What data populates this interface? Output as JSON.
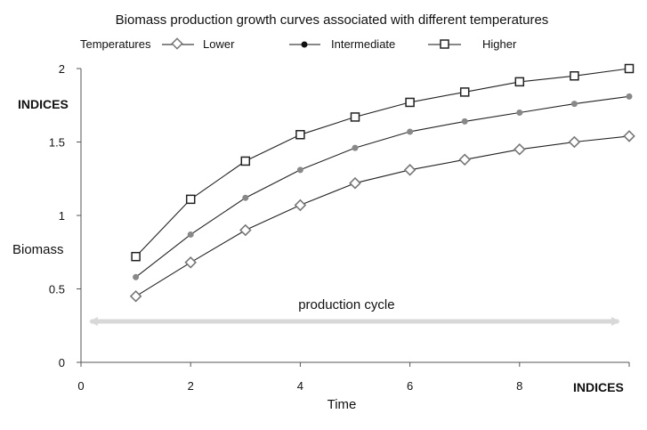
{
  "chart_data": {
    "type": "line",
    "title": "Biomass production growth curves associated with different temperatures",
    "xlabel": "Time",
    "ylabel": "Biomass",
    "xlim": [
      0,
      10
    ],
    "ylim": [
      0,
      2
    ],
    "x_ticks": [
      "0",
      "2",
      "4",
      "6",
      "8"
    ],
    "y_ticks": [
      "0",
      "0.5",
      "1",
      "1.5",
      "2"
    ],
    "x_index_label": "INDICES",
    "y_index_label": "INDICES",
    "legend_title": "Temperatures",
    "legend_position": "top",
    "grid": false,
    "annotation": {
      "text": "production cycle",
      "from_x": 0.5,
      "to_x": 10,
      "y": 0.23
    },
    "x": [
      1,
      2,
      3,
      4,
      5,
      6,
      7,
      8,
      9,
      10
    ],
    "series": [
      {
        "name": "Lower",
        "marker": "diamond-open",
        "color": "#777777",
        "values": [
          0.45,
          0.68,
          0.9,
          1.07,
          1.22,
          1.31,
          1.38,
          1.45,
          1.5,
          1.54
        ]
      },
      {
        "name": "Intermediate",
        "marker": "circle-filled",
        "color": "#888888",
        "values": [
          0.58,
          0.87,
          1.12,
          1.31,
          1.46,
          1.57,
          1.64,
          1.7,
          1.76,
          1.81
        ]
      },
      {
        "name": "Higher",
        "marker": "square-open",
        "color": "#222222",
        "values": [
          0.72,
          1.11,
          1.37,
          1.55,
          1.67,
          1.77,
          1.84,
          1.91,
          1.95,
          2.0
        ]
      }
    ]
  }
}
